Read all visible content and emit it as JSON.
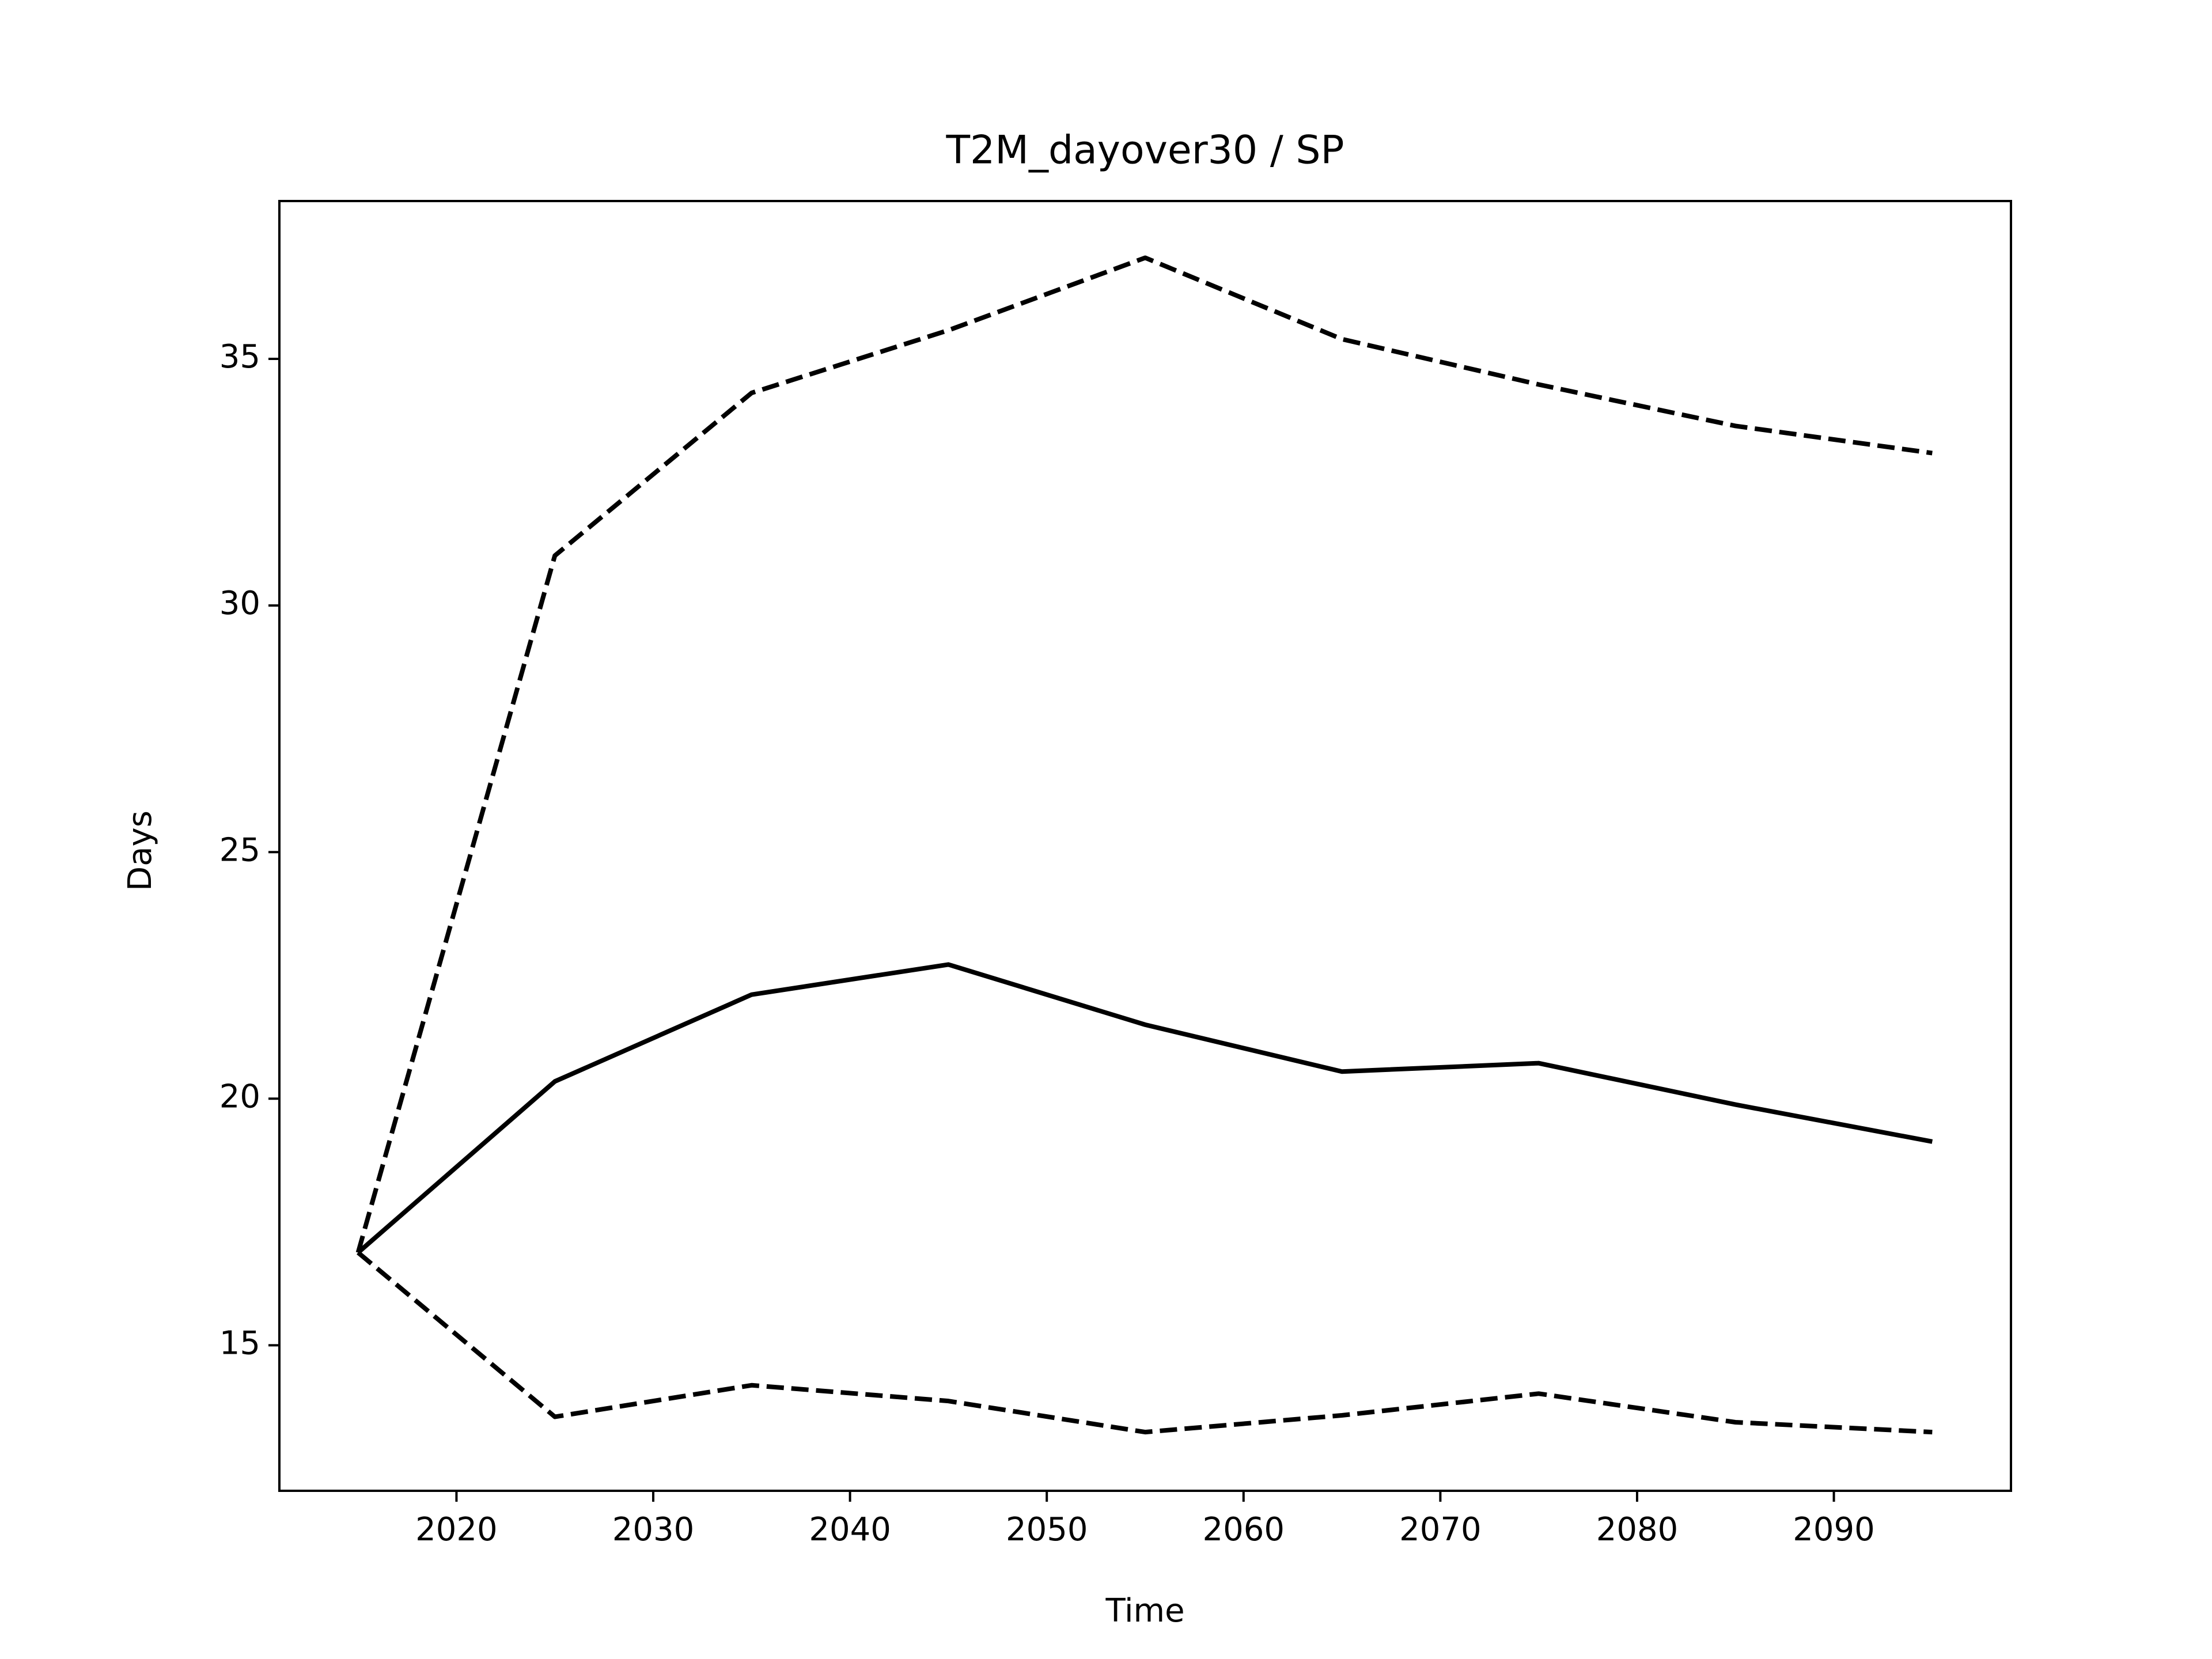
{
  "chart_data": {
    "type": "line",
    "title": "T2M_dayover30 / SP",
    "xlabel": "Time",
    "ylabel": "Days",
    "x": [
      2015,
      2025,
      2035,
      2045,
      2055,
      2065,
      2075,
      2085,
      2095
    ],
    "series": [
      {
        "color": "#000000",
        "linestyle": "solid",
        "values": [
          16.88,
          20.35,
          22.11,
          22.72,
          21.5,
          20.55,
          20.72,
          19.88,
          19.13
        ]
      },
      {
        "color": "#000000",
        "linestyle": "dashed",
        "values": [
          16.88,
          31.01,
          34.31,
          35.58,
          37.05,
          35.4,
          34.48,
          33.64,
          33.09
        ]
      },
      {
        "color": "#000000",
        "linestyle": "dashed",
        "values": [
          16.88,
          13.55,
          14.19,
          13.87,
          13.24,
          13.58,
          14.02,
          13.44,
          13.24
        ]
      }
    ],
    "xlim": [
      2011,
      2099
    ],
    "xticks": [
      2020,
      2030,
      2040,
      2050,
      2060,
      2070,
      2080,
      2090
    ],
    "ylim": [
      12.05,
      38.2
    ],
    "yticks": [
      15,
      20,
      25,
      30,
      35
    ],
    "grid": false
  }
}
